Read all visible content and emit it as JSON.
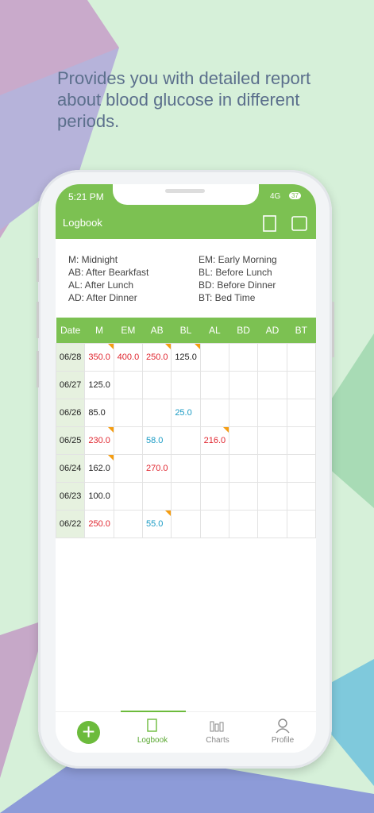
{
  "headline": [
    "Provides you with detailed report",
    "about blood glucose in different",
    "periods."
  ],
  "status": {
    "time": "5:21 PM",
    "network": "4G",
    "battery": "37"
  },
  "app_bar": {
    "title": "Logbook"
  },
  "legend": [
    "M: Midnight",
    "EM: Early Morning",
    "AB: After Bearkfast",
    "BL: Before Lunch",
    "AL: After Lunch",
    "BD: Before Dinner",
    "AD: After Dinner",
    "BT: Bed Time"
  ],
  "table": {
    "header": [
      "Date",
      "M",
      "EM",
      "AB",
      "BL",
      "AL",
      "BD",
      "AD",
      "BT"
    ],
    "rows": [
      {
        "date": "06/28",
        "cells": [
          {
            "text": "350.0",
            "color": "#e0262f",
            "note": true
          },
          {
            "text": "400.0",
            "color": "#e0262f",
            "note": false
          },
          {
            "text": "250.0",
            "color": "#e0262f",
            "note": true
          },
          {
            "text": "125.0",
            "color": "#222222",
            "note": true
          },
          null,
          null,
          null,
          null
        ]
      },
      {
        "date": "06/27",
        "cells": [
          {
            "text": "125.0",
            "color": "#222222",
            "note": false
          },
          null,
          null,
          null,
          null,
          null,
          null,
          null
        ]
      },
      {
        "date": "06/26",
        "cells": [
          {
            "text": "85.0",
            "color": "#222222",
            "note": false
          },
          null,
          null,
          {
            "text": "25.0",
            "color": "#1a9bc4",
            "note": false
          },
          null,
          null,
          null,
          null
        ]
      },
      {
        "date": "06/25",
        "cells": [
          {
            "text": "230.0",
            "color": "#e0262f",
            "note": true
          },
          null,
          {
            "text": "58.0",
            "color": "#1a9bc4",
            "note": false
          },
          null,
          {
            "text": "216.0",
            "color": "#e0262f",
            "note": true
          },
          null,
          null,
          null
        ]
      },
      {
        "date": "06/24",
        "cells": [
          {
            "text": "162.0",
            "color": "#222222",
            "note": true
          },
          null,
          {
            "text": "270.0",
            "color": "#e0262f",
            "note": false
          },
          null,
          null,
          null,
          null,
          null
        ]
      },
      {
        "date": "06/23",
        "cells": [
          {
            "text": "100.0",
            "color": "#222222",
            "note": false
          },
          null,
          null,
          null,
          null,
          null,
          null,
          null
        ]
      },
      {
        "date": "06/22",
        "cells": [
          {
            "text": "250.0",
            "color": "#e0262f",
            "note": false
          },
          null,
          {
            "text": "55.0",
            "color": "#1a9bc4",
            "note": true
          },
          null,
          null,
          null,
          null,
          null
        ]
      }
    ]
  },
  "nav": [
    "Logbook",
    "Charts",
    "Profile"
  ]
}
